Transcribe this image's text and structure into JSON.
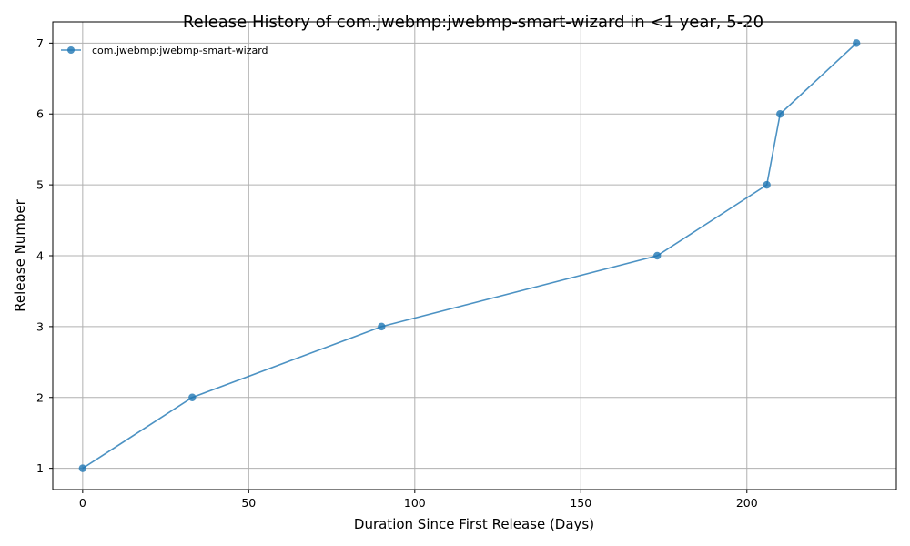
{
  "chart_data": {
    "type": "line",
    "title": "Release History of com.jwebmp:jwebmp-smart-wizard in <1 year, 5-20",
    "xlabel": "Duration Since First Release (Days)",
    "ylabel": "Release Number",
    "xlim": [
      -9,
      245
    ],
    "ylim": [
      0.7,
      7.3
    ],
    "xticks": [
      0,
      50,
      100,
      150,
      200
    ],
    "yticks": [
      1,
      2,
      3,
      4,
      5,
      6,
      7
    ],
    "grid": true,
    "legend_position": "top-left",
    "series": [
      {
        "name": "com.jwebmp:jwebmp-smart-wizard",
        "color": "#1f77b4",
        "marker": "circle",
        "x": [
          0,
          33,
          90,
          173,
          206,
          210,
          233
        ],
        "y": [
          1,
          2,
          3,
          4,
          5,
          6,
          7
        ]
      }
    ]
  }
}
